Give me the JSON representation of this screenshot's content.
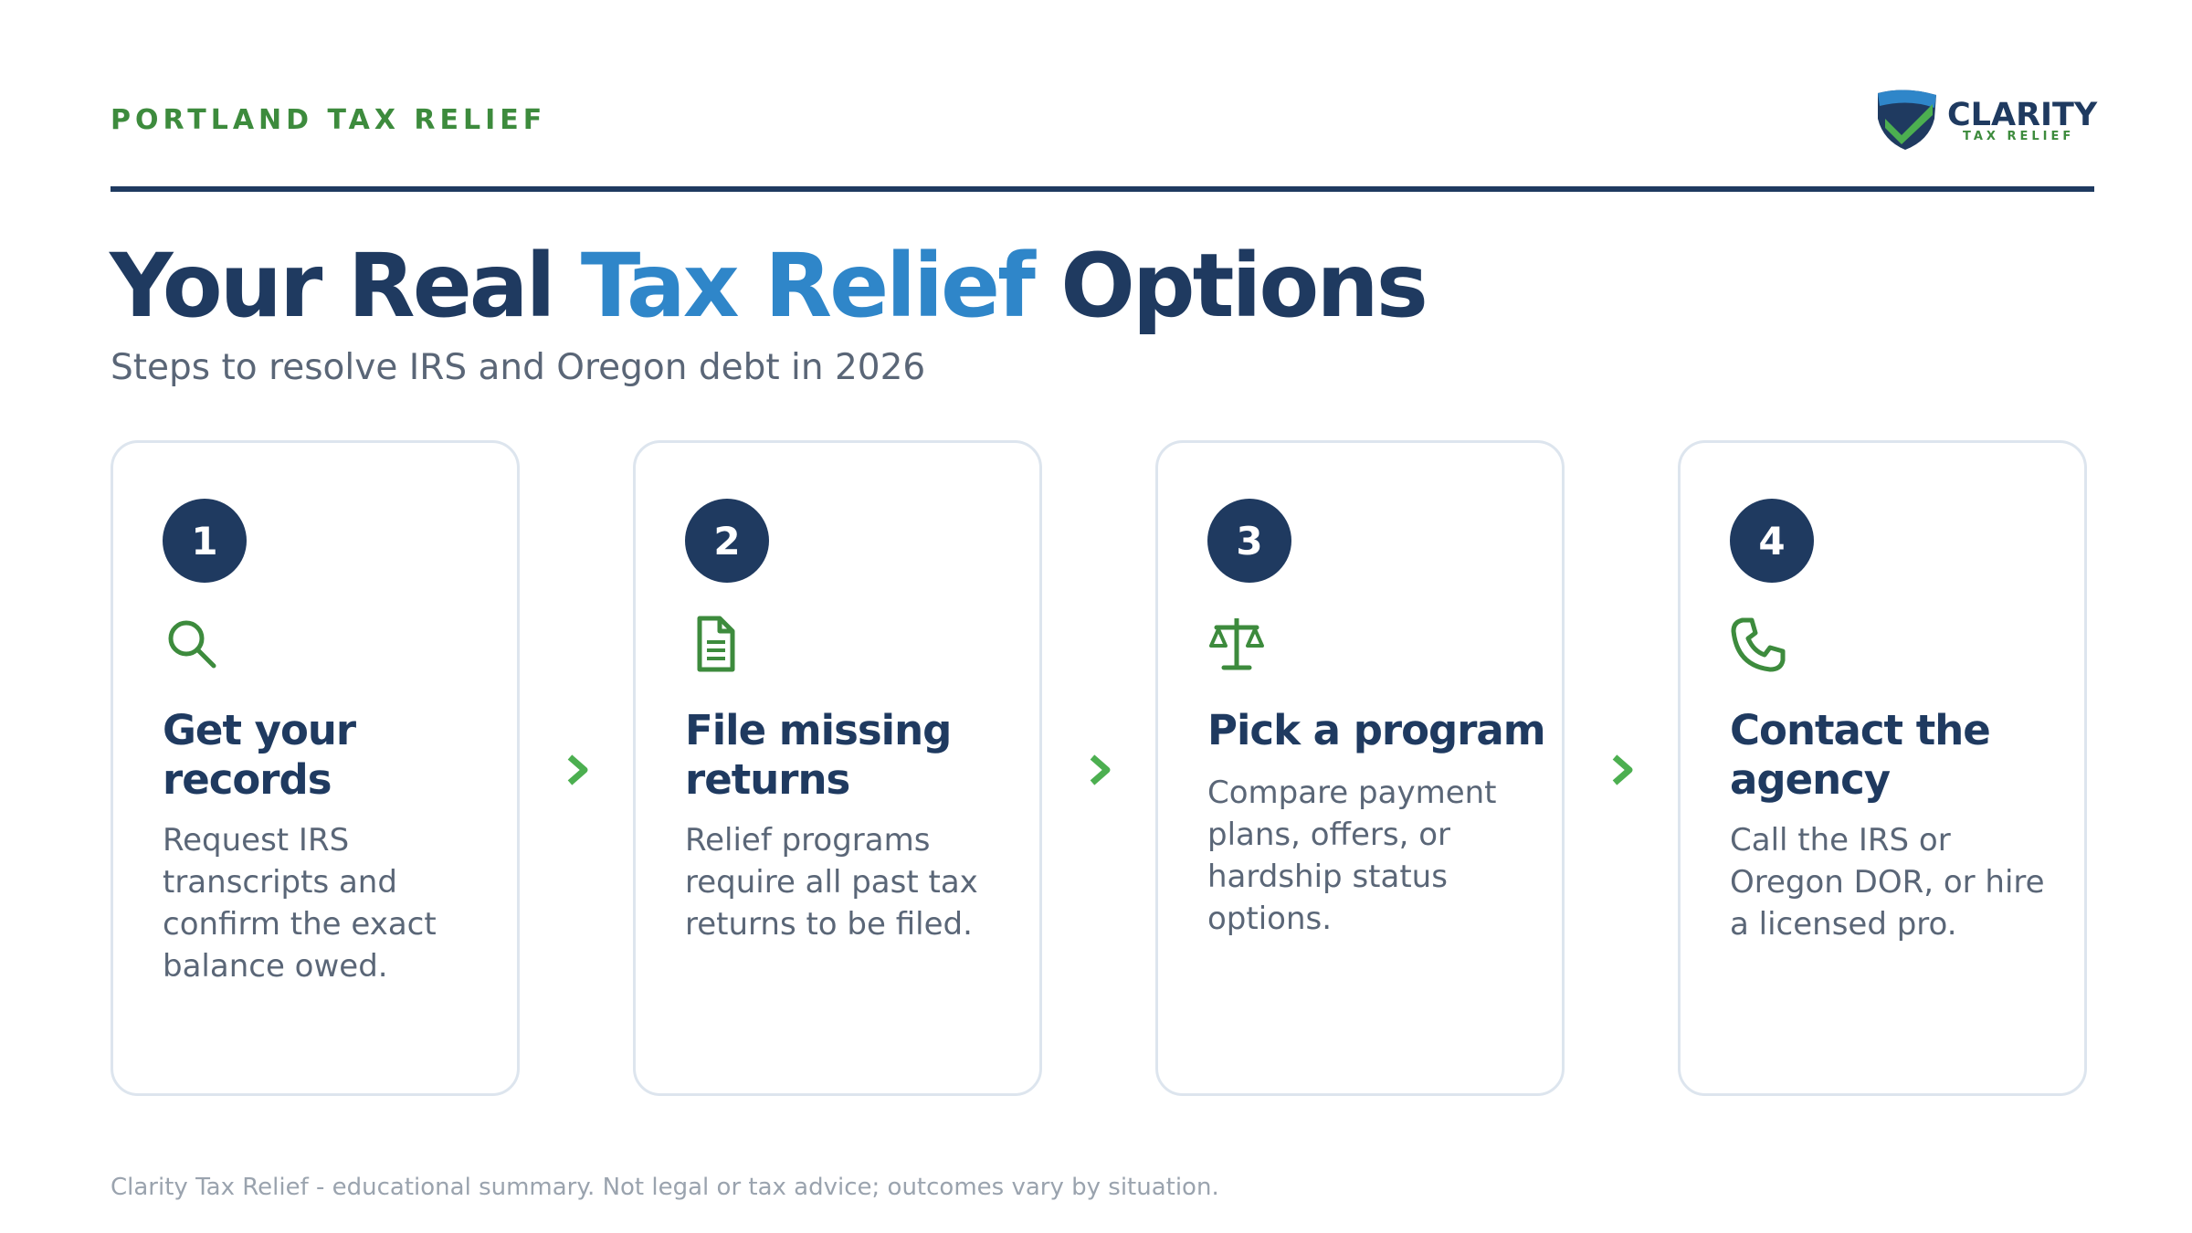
{
  "header": {
    "eyebrow": "PORTLAND TAX RELIEF",
    "logo": {
      "word": "CLARITY",
      "sub": "TAX RELIEF"
    }
  },
  "title": {
    "part1": "Your Real ",
    "accent": "Tax Relief",
    "part2": " Options"
  },
  "subtitle": "Steps to resolve IRS and Oregon debt in 2026",
  "steps": [
    {
      "number": "1",
      "icon": "search-icon",
      "title": "Get your records",
      "body": "Request IRS transcripts and confirm the exact balance owed."
    },
    {
      "number": "2",
      "icon": "document-icon",
      "title": "File missing returns",
      "body": "Relief programs require all past tax returns to be filed."
    },
    {
      "number": "3",
      "icon": "scales-icon",
      "title": "Pick a program",
      "body": "Compare payment plans, offers, or hardship status options."
    },
    {
      "number": "4",
      "icon": "phone-icon",
      "title": "Contact the agency",
      "body": "Call the IRS or Oregon DOR, or hire a licensed pro."
    }
  ],
  "footer": "Clarity Tax Relief - educational summary. Not legal or tax advice; outcomes vary by situation.",
  "colors": {
    "navy": "#1f3a60",
    "accent_blue": "#2f86c9",
    "green": "#3d8b3d",
    "muted": "#5a6677",
    "card_border": "#dde5ee"
  }
}
